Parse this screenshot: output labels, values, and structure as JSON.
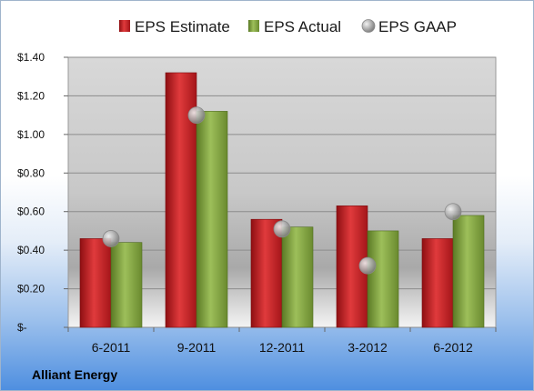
{
  "chart_data": {
    "type": "bar",
    "title": "",
    "xlabel": "",
    "ylabel": "",
    "categories": [
      "6-2011",
      "9-2011",
      "12-2011",
      "3-2012",
      "6-2012"
    ],
    "series": [
      {
        "name": "EPS Estimate",
        "kind": "bar",
        "color": "#cc1f24",
        "values": [
          0.46,
          1.32,
          0.56,
          0.63,
          0.46
        ]
      },
      {
        "name": "EPS Actual",
        "kind": "bar",
        "color": "#7d9f3d",
        "values": [
          0.44,
          1.12,
          0.52,
          0.5,
          0.58
        ]
      },
      {
        "name": "EPS GAAP",
        "kind": "marker",
        "color": "#a6a6a6",
        "values": [
          0.46,
          1.1,
          0.51,
          0.32,
          0.6
        ]
      }
    ],
    "ylim": [
      0,
      1.4
    ],
    "yticks": [
      0,
      0.2,
      0.4,
      0.6,
      0.8,
      1.0,
      1.2,
      1.4
    ],
    "ytick_labels": [
      "$-",
      "$0.20",
      "$0.40",
      "$0.60",
      "$0.80",
      "$1.00",
      "$1.20",
      "$1.40"
    ],
    "grid": true,
    "legend_position": "top"
  },
  "footer": {
    "company": "Alliant Energy"
  }
}
